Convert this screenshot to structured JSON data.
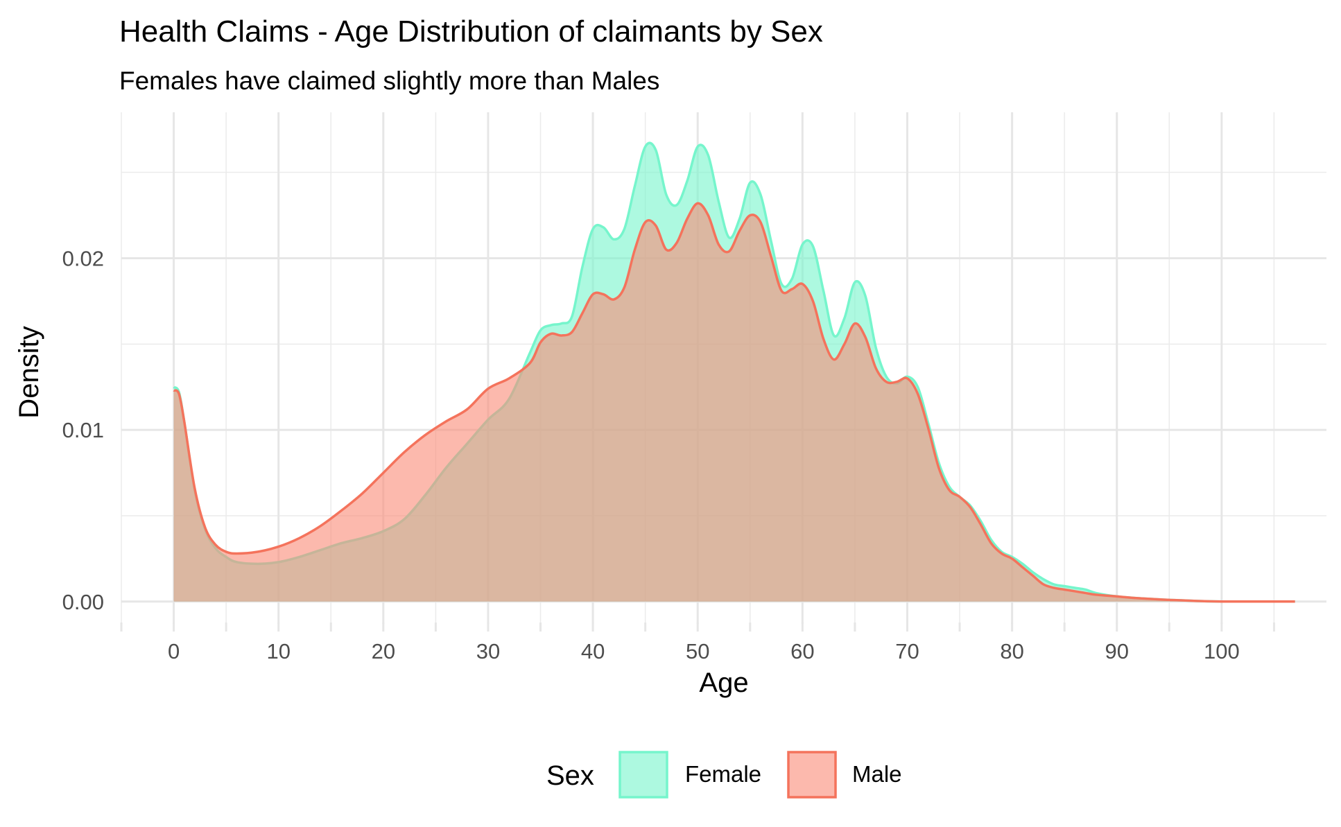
{
  "chart_data": {
    "type": "area",
    "title": "Health Claims - Age Distribution of claimants by Sex",
    "subtitle": "Females have claimed slightly more than Males",
    "xlabel": "Age",
    "ylabel": "Density",
    "xlim": [
      -5,
      110
    ],
    "ylim": [
      -0.0013,
      0.0285
    ],
    "x_ticks": [
      0,
      10,
      20,
      30,
      40,
      50,
      60,
      70,
      80,
      90,
      100
    ],
    "x_minor_ticks": [
      -5,
      5,
      15,
      25,
      35,
      45,
      55,
      65,
      75,
      85,
      95,
      105
    ],
    "y_ticks": [
      0.0,
      0.01,
      0.02
    ],
    "y_tick_labels": [
      "0.00",
      "0.01",
      "0.02"
    ],
    "y_minor_ticks": [
      0.005,
      0.015,
      0.025
    ],
    "grid": true,
    "legend": {
      "title": "Sex",
      "position": "bottom"
    },
    "series": [
      {
        "name": "Female",
        "color": "#76F5CC",
        "fill": "#76F5CC",
        "x": [
          0,
          0.5,
          1,
          2,
          3,
          4,
          5,
          6,
          8,
          10,
          12,
          14,
          16,
          18,
          20,
          22,
          24,
          26,
          28,
          30,
          32,
          34,
          35,
          36,
          37,
          38,
          39,
          40,
          41,
          42,
          43,
          44,
          45,
          46,
          47,
          48,
          49,
          50,
          51,
          52,
          53,
          54,
          55,
          56,
          57,
          58,
          59,
          60,
          61,
          62,
          63,
          64,
          65,
          66,
          67,
          68,
          69,
          70,
          71,
          72,
          73,
          74,
          75,
          76,
          77,
          78,
          79,
          80,
          81,
          82,
          83,
          84,
          85,
          86,
          87,
          88,
          90,
          92,
          95,
          100,
          107
        ],
        "y": [
          0.0125,
          0.0122,
          0.0105,
          0.0065,
          0.0042,
          0.0031,
          0.0026,
          0.0023,
          0.0022,
          0.0023,
          0.0026,
          0.003,
          0.0034,
          0.0037,
          0.0041,
          0.0048,
          0.0062,
          0.0078,
          0.0092,
          0.0106,
          0.0118,
          0.0145,
          0.0158,
          0.0161,
          0.0162,
          0.0166,
          0.0195,
          0.0217,
          0.0218,
          0.0211,
          0.0217,
          0.0242,
          0.0265,
          0.0263,
          0.0237,
          0.0231,
          0.0245,
          0.0265,
          0.026,
          0.0233,
          0.0212,
          0.0223,
          0.0244,
          0.0237,
          0.021,
          0.0185,
          0.0188,
          0.0208,
          0.0207,
          0.0181,
          0.0155,
          0.0165,
          0.0186,
          0.0178,
          0.0148,
          0.0131,
          0.0127,
          0.0131,
          0.0125,
          0.0104,
          0.0081,
          0.0067,
          0.0061,
          0.0056,
          0.0047,
          0.0036,
          0.0029,
          0.0026,
          0.0022,
          0.0017,
          0.0013,
          0.001,
          0.0009,
          0.0008,
          0.0007,
          0.0005,
          0.0003,
          0.0002,
          0.0001,
          0.0,
          0.0
        ]
      },
      {
        "name": "Male",
        "color": "#F4735C",
        "fill": "#FA8A76",
        "x": [
          0,
          0.5,
          1,
          2,
          3,
          4,
          5,
          6,
          8,
          10,
          12,
          14,
          16,
          18,
          20,
          22,
          24,
          26,
          28,
          30,
          32,
          34,
          35,
          36,
          37,
          38,
          39,
          40,
          41,
          42,
          43,
          44,
          45,
          46,
          47,
          48,
          49,
          50,
          51,
          52,
          53,
          54,
          55,
          56,
          57,
          58,
          59,
          60,
          61,
          62,
          63,
          64,
          65,
          66,
          67,
          68,
          69,
          70,
          71,
          72,
          73,
          74,
          75,
          76,
          77,
          78,
          79,
          80,
          81,
          82,
          83,
          84,
          85,
          86,
          87,
          88,
          90,
          92,
          95,
          100,
          107
        ],
        "y": [
          0.0123,
          0.0121,
          0.0105,
          0.0066,
          0.0043,
          0.0033,
          0.0029,
          0.0028,
          0.0029,
          0.0032,
          0.0037,
          0.0044,
          0.0053,
          0.0063,
          0.0075,
          0.0087,
          0.0097,
          0.0105,
          0.0112,
          0.0124,
          0.013,
          0.0139,
          0.0151,
          0.0156,
          0.0155,
          0.0157,
          0.0168,
          0.0179,
          0.0179,
          0.0176,
          0.0183,
          0.0205,
          0.0221,
          0.0219,
          0.0205,
          0.0209,
          0.0223,
          0.0232,
          0.0225,
          0.0208,
          0.0204,
          0.0216,
          0.0225,
          0.0221,
          0.0201,
          0.0181,
          0.0182,
          0.0185,
          0.0175,
          0.0153,
          0.0141,
          0.015,
          0.0162,
          0.0154,
          0.0136,
          0.0128,
          0.0128,
          0.013,
          0.0121,
          0.0101,
          0.0078,
          0.0065,
          0.0061,
          0.0055,
          0.0045,
          0.0034,
          0.0028,
          0.0025,
          0.002,
          0.0015,
          0.001,
          0.0008,
          0.0007,
          0.0006,
          0.0005,
          0.0004,
          0.0003,
          0.0002,
          0.0001,
          0.0,
          0.0
        ]
      }
    ]
  }
}
